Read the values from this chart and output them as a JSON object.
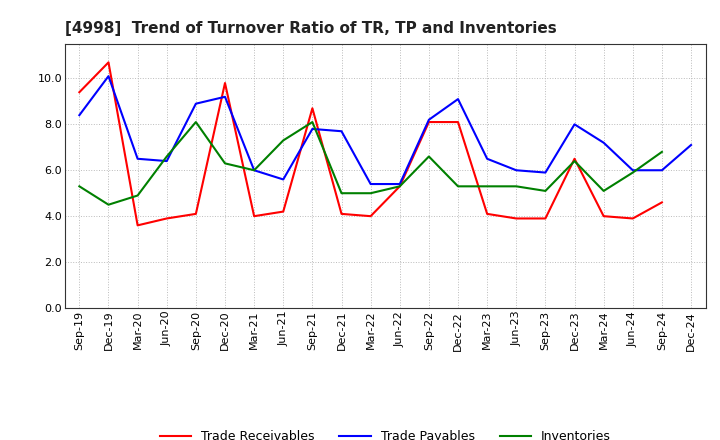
{
  "title": "[4998]  Trend of Turnover Ratio of TR, TP and Inventories",
  "x_labels": [
    "Sep-19",
    "Dec-19",
    "Mar-20",
    "Jun-20",
    "Sep-20",
    "Dec-20",
    "Mar-21",
    "Jun-21",
    "Sep-21",
    "Dec-21",
    "Mar-22",
    "Jun-22",
    "Sep-22",
    "Dec-22",
    "Mar-23",
    "Jun-23",
    "Sep-23",
    "Dec-23",
    "Mar-24",
    "Jun-24",
    "Sep-24",
    "Dec-24"
  ],
  "trade_receivables": [
    9.4,
    10.7,
    3.6,
    3.9,
    4.1,
    9.8,
    4.0,
    4.2,
    8.7,
    4.1,
    4.0,
    5.3,
    8.1,
    8.1,
    4.1,
    3.9,
    3.9,
    6.5,
    4.0,
    3.9,
    4.6,
    null
  ],
  "trade_payables": [
    8.4,
    10.1,
    6.5,
    6.4,
    8.9,
    9.2,
    6.0,
    5.6,
    7.8,
    7.7,
    5.4,
    5.4,
    8.2,
    9.1,
    6.5,
    6.0,
    5.9,
    8.0,
    7.2,
    6.0,
    6.0,
    7.1
  ],
  "inventories": [
    5.3,
    4.5,
    4.9,
    6.6,
    8.1,
    6.3,
    6.0,
    7.3,
    8.1,
    5.0,
    5.0,
    5.3,
    6.6,
    5.3,
    5.3,
    5.3,
    5.1,
    6.4,
    5.1,
    5.9,
    6.8,
    null
  ],
  "tr_color": "#ff0000",
  "tp_color": "#0000ff",
  "inv_color": "#008000",
  "ylim": [
    0,
    11.5
  ],
  "yticks": [
    0.0,
    2.0,
    4.0,
    6.0,
    8.0,
    10.0
  ],
  "background_color": "#ffffff",
  "grid_color": "#bbbbbb",
  "title_fontsize": 11,
  "legend_fontsize": 9,
  "tick_fontsize": 8
}
